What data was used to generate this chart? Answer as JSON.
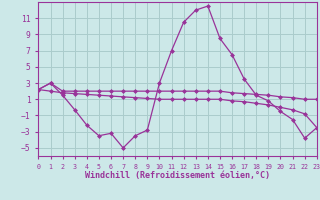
{
  "xlabel": "Windchill (Refroidissement éolien,°C)",
  "background_color": "#cce8e8",
  "grid_color": "#aacccc",
  "line_color": "#993399",
  "xlim": [
    0,
    23
  ],
  "ylim": [
    -6,
    13
  ],
  "yticks": [
    -5,
    -3,
    -1,
    1,
    3,
    5,
    7,
    9,
    11
  ],
  "xticks": [
    0,
    1,
    2,
    3,
    4,
    5,
    6,
    7,
    8,
    9,
    10,
    11,
    12,
    13,
    14,
    15,
    16,
    17,
    18,
    19,
    20,
    21,
    22,
    23
  ],
  "series": [
    {
      "x": [
        0,
        1,
        2,
        3,
        4,
        5,
        6,
        7,
        8,
        9,
        10,
        11,
        12,
        13,
        14,
        15,
        16,
        17,
        18,
        19,
        20,
        21,
        22,
        23
      ],
      "y": [
        2.2,
        3.0,
        2.0,
        2.0,
        2.0,
        2.0,
        2.0,
        2.0,
        2.0,
        2.0,
        2.0,
        2.0,
        2.0,
        2.0,
        2.0,
        2.0,
        1.8,
        1.7,
        1.6,
        1.5,
        1.3,
        1.2,
        1.0,
        1.0
      ]
    },
    {
      "x": [
        0,
        1,
        2,
        3,
        4,
        5,
        6,
        7,
        8,
        9,
        10,
        11,
        12,
        13,
        14,
        15,
        16,
        17,
        18,
        19,
        20,
        21,
        22,
        23
      ],
      "y": [
        2.2,
        3.0,
        1.5,
        -0.3,
        -2.2,
        -3.5,
        -3.2,
        -5.0,
        -3.5,
        -2.8,
        3.0,
        7.0,
        10.5,
        12.0,
        12.5,
        8.5,
        6.5,
        3.5,
        1.5,
        0.8,
        -0.5,
        -1.5,
        -3.8,
        -2.5
      ]
    },
    {
      "x": [
        0,
        1,
        2,
        3,
        4,
        5,
        6,
        7,
        8,
        9,
        10,
        11,
        12,
        13,
        14,
        15,
        16,
        17,
        18,
        19,
        20,
        21,
        22,
        23
      ],
      "y": [
        2.2,
        2.0,
        1.8,
        1.7,
        1.6,
        1.5,
        1.4,
        1.3,
        1.2,
        1.1,
        1.0,
        1.0,
        1.0,
        1.0,
        1.0,
        1.0,
        0.8,
        0.7,
        0.5,
        0.3,
        0.0,
        -0.3,
        -0.8,
        -2.5
      ]
    }
  ]
}
